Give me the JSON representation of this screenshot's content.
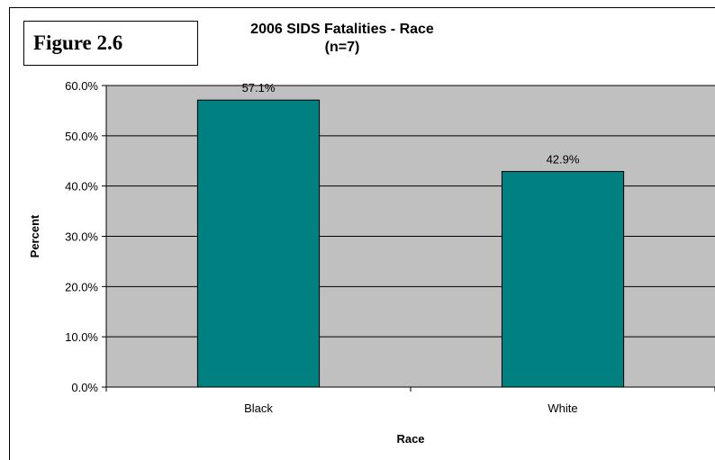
{
  "figure_label": "Figure 2.6",
  "chart_data": {
    "type": "bar",
    "title": "2006 SIDS Fatalities - Race",
    "subtitle": "(n=7)",
    "xlabel": "Race",
    "ylabel": "Percent",
    "categories": [
      "Black",
      "White"
    ],
    "values": [
      57.1,
      42.9
    ],
    "data_labels": [
      "57.1%",
      "42.9%"
    ],
    "ylim": [
      0,
      60
    ],
    "yticks": [
      0,
      10,
      20,
      30,
      40,
      50,
      60
    ],
    "ytick_labels": [
      "0.0%",
      "10.0%",
      "20.0%",
      "30.0%",
      "40.0%",
      "50.0%",
      "60.0%"
    ],
    "grid": true,
    "legend": "none",
    "colors": {
      "bar": "#008080",
      "plot_background": "#c0c0c0"
    }
  }
}
